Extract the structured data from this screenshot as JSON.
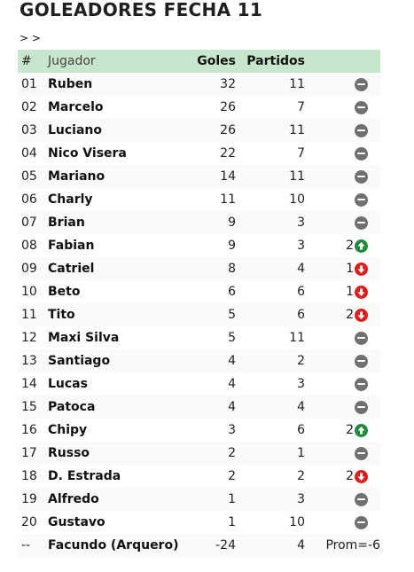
{
  "page": {
    "title": "GOLEADORES FECHA 11",
    "breadcrumb": "> >"
  },
  "table": {
    "headers": {
      "num": "#",
      "player": "Jugador",
      "goals": "Goles",
      "matches": "Partidos"
    },
    "rows": [
      {
        "num": "01",
        "name": "Ruben",
        "goals": "32",
        "matches": "11",
        "trend": "same",
        "delta": ""
      },
      {
        "num": "02",
        "name": "Marcelo",
        "goals": "26",
        "matches": "7",
        "trend": "same",
        "delta": ""
      },
      {
        "num": "03",
        "name": "Luciano",
        "goals": "26",
        "matches": "11",
        "trend": "same",
        "delta": ""
      },
      {
        "num": "04",
        "name": "Nico Visera",
        "goals": "22",
        "matches": "7",
        "trend": "same",
        "delta": ""
      },
      {
        "num": "05",
        "name": "Mariano",
        "goals": "14",
        "matches": "11",
        "trend": "same",
        "delta": ""
      },
      {
        "num": "06",
        "name": "Charly",
        "goals": "11",
        "matches": "10",
        "trend": "same",
        "delta": ""
      },
      {
        "num": "07",
        "name": "Brian",
        "goals": "9",
        "matches": "3",
        "trend": "same",
        "delta": ""
      },
      {
        "num": "08",
        "name": "Fabian",
        "goals": "9",
        "matches": "3",
        "trend": "up",
        "delta": "2"
      },
      {
        "num": "09",
        "name": "Catriel",
        "goals": "8",
        "matches": "4",
        "trend": "down",
        "delta": "1"
      },
      {
        "num": "10",
        "name": "Beto",
        "goals": "6",
        "matches": "6",
        "trend": "down",
        "delta": "1"
      },
      {
        "num": "11",
        "name": "Tito",
        "goals": "5",
        "matches": "6",
        "trend": "down",
        "delta": "2"
      },
      {
        "num": "12",
        "name": "Maxi Silva",
        "goals": "5",
        "matches": "11",
        "trend": "same",
        "delta": ""
      },
      {
        "num": "13",
        "name": "Santiago",
        "goals": "4",
        "matches": "2",
        "trend": "same",
        "delta": ""
      },
      {
        "num": "14",
        "name": "Lucas",
        "goals": "4",
        "matches": "3",
        "trend": "same",
        "delta": ""
      },
      {
        "num": "15",
        "name": "Patoca",
        "goals": "4",
        "matches": "4",
        "trend": "same",
        "delta": ""
      },
      {
        "num": "16",
        "name": "Chipy",
        "goals": "3",
        "matches": "6",
        "trend": "up",
        "delta": "2"
      },
      {
        "num": "17",
        "name": "Russo",
        "goals": "2",
        "matches": "1",
        "trend": "same",
        "delta": ""
      },
      {
        "num": "18",
        "name": "D. Estrada",
        "goals": "2",
        "matches": "2",
        "trend": "down",
        "delta": "2"
      },
      {
        "num": "19",
        "name": "Alfredo",
        "goals": "1",
        "matches": "3",
        "trend": "same",
        "delta": ""
      },
      {
        "num": "20",
        "name": "Gustavo",
        "goals": "1",
        "matches": "10",
        "trend": "same",
        "delta": ""
      }
    ],
    "keeper": {
      "num": "--",
      "name": "Facundo (Arquero)",
      "goals": "-24",
      "matches": "4",
      "note": "Prom=-6"
    }
  },
  "icons": {
    "same": "minus-circle-icon",
    "up": "arrow-up-circle-icon",
    "down": "arrow-down-circle-icon"
  },
  "colors": {
    "header_bg": "#c8e6cc",
    "same": "#707070",
    "up": "#1e8c3a",
    "down": "#e01d1d"
  }
}
